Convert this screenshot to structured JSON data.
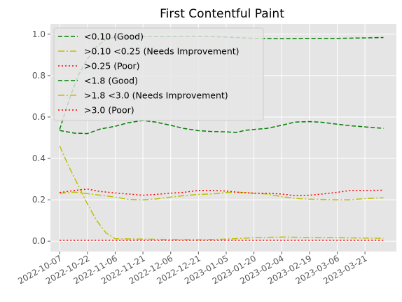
{
  "chart_data": {
    "type": "line",
    "title": "First Contentful Paint",
    "xlabel": "",
    "ylabel": "",
    "x_type": "date",
    "xlim": [
      "2022-10-02",
      "2023-04-07"
    ],
    "ylim": [
      -0.05,
      1.05
    ],
    "x_ticks": [
      "2022-10-07",
      "2022-10-22",
      "2022-11-06",
      "2022-11-21",
      "2022-12-06",
      "2022-12-21",
      "2023-01-05",
      "2023-01-20",
      "2023-02-04",
      "2023-02-19",
      "2023-03-06",
      "2023-03-21"
    ],
    "y_ticks": [
      0.0,
      0.2,
      0.4,
      0.6,
      0.8,
      1.0
    ],
    "y_tick_labels": [
      "0.0",
      "0.2",
      "0.4",
      "0.6",
      "0.8",
      "1.0"
    ],
    "grid": true,
    "legend_position": "top-left",
    "background": "#e5e5e5",
    "series": [
      {
        "name": "<0.10 (Good)",
        "color": "#008000",
        "style": "dashed",
        "points": [
          [
            "2022-10-07",
            0.54
          ],
          [
            "2022-10-12",
            0.68
          ],
          [
            "2022-10-17",
            0.8
          ],
          [
            "2022-10-22",
            0.88
          ],
          [
            "2022-10-27",
            0.94
          ],
          [
            "2022-11-01",
            0.975
          ],
          [
            "2022-11-06",
            0.985
          ],
          [
            "2022-11-21",
            0.988
          ],
          [
            "2022-12-06",
            0.988
          ],
          [
            "2022-12-21",
            0.99
          ],
          [
            "2023-01-05",
            0.986
          ],
          [
            "2023-01-20",
            0.98
          ],
          [
            "2023-02-04",
            0.978
          ],
          [
            "2023-02-19",
            0.98
          ],
          [
            "2023-03-06",
            0.98
          ],
          [
            "2023-03-21",
            0.982
          ],
          [
            "2023-03-31",
            0.984
          ]
        ]
      },
      {
        "name": ">0.10  <0.25 (Needs Improvement)",
        "color": "#bfbf00",
        "style": "dashdot",
        "points": [
          [
            "2022-10-07",
            0.46
          ],
          [
            "2022-10-12",
            0.36
          ],
          [
            "2022-10-17",
            0.27
          ],
          [
            "2022-10-22",
            0.18
          ],
          [
            "2022-10-27",
            0.1
          ],
          [
            "2022-11-01",
            0.04
          ],
          [
            "2022-11-06",
            0.012
          ],
          [
            "2022-11-21",
            0.01
          ],
          [
            "2022-12-06",
            0.008
          ],
          [
            "2022-12-21",
            0.007
          ],
          [
            "2023-01-05",
            0.01
          ],
          [
            "2023-01-20",
            0.017
          ],
          [
            "2023-02-04",
            0.02
          ],
          [
            "2023-02-19",
            0.018
          ],
          [
            "2023-03-06",
            0.017
          ],
          [
            "2023-03-21",
            0.015
          ],
          [
            "2023-03-31",
            0.014
          ]
        ]
      },
      {
        "name": ">0.25 (Poor)",
        "color": "#ff0000",
        "style": "dotted",
        "points": [
          [
            "2022-10-07",
            0.004
          ],
          [
            "2022-10-22",
            0.004
          ],
          [
            "2022-11-06",
            0.004
          ],
          [
            "2022-11-21",
            0.004
          ],
          [
            "2022-12-06",
            0.004
          ],
          [
            "2022-12-21",
            0.004
          ],
          [
            "2023-01-05",
            0.004
          ],
          [
            "2023-01-20",
            0.004
          ],
          [
            "2023-02-04",
            0.004
          ],
          [
            "2023-02-19",
            0.004
          ],
          [
            "2023-03-06",
            0.004
          ],
          [
            "2023-03-21",
            0.004
          ],
          [
            "2023-03-31",
            0.004
          ]
        ]
      },
      {
        "name": "<1.8 (Good)",
        "color": "#008000",
        "style": "dashed",
        "points": [
          [
            "2022-10-07",
            0.535
          ],
          [
            "2022-10-15",
            0.522
          ],
          [
            "2022-10-22",
            0.52
          ],
          [
            "2022-10-29",
            0.542
          ],
          [
            "2022-11-06",
            0.555
          ],
          [
            "2022-11-13",
            0.572
          ],
          [
            "2022-11-21",
            0.583
          ],
          [
            "2022-11-28",
            0.575
          ],
          [
            "2022-12-06",
            0.56
          ],
          [
            "2022-12-13",
            0.545
          ],
          [
            "2022-12-21",
            0.534
          ],
          [
            "2022-12-28",
            0.53
          ],
          [
            "2023-01-05",
            0.528
          ],
          [
            "2023-01-10",
            0.525
          ],
          [
            "2023-01-15",
            0.535
          ],
          [
            "2023-01-20",
            0.54
          ],
          [
            "2023-01-27",
            0.545
          ],
          [
            "2023-02-04",
            0.56
          ],
          [
            "2023-02-11",
            0.575
          ],
          [
            "2023-02-19",
            0.578
          ],
          [
            "2023-02-26",
            0.574
          ],
          [
            "2023-03-06",
            0.565
          ],
          [
            "2023-03-13",
            0.558
          ],
          [
            "2023-03-21",
            0.552
          ],
          [
            "2023-03-31",
            0.545
          ]
        ]
      },
      {
        "name": ">1.8  <3.0 (Needs Improvement)",
        "color": "#bfbf00",
        "style": "dashdot",
        "points": [
          [
            "2022-10-07",
            0.232
          ],
          [
            "2022-10-15",
            0.237
          ],
          [
            "2022-10-22",
            0.23
          ],
          [
            "2022-10-29",
            0.222
          ],
          [
            "2022-11-06",
            0.213
          ],
          [
            "2022-11-13",
            0.202
          ],
          [
            "2022-11-21",
            0.2
          ],
          [
            "2022-11-28",
            0.204
          ],
          [
            "2022-12-06",
            0.213
          ],
          [
            "2022-12-13",
            0.22
          ],
          [
            "2022-12-21",
            0.226
          ],
          [
            "2022-12-28",
            0.228
          ],
          [
            "2023-01-05",
            0.235
          ],
          [
            "2023-01-12",
            0.236
          ],
          [
            "2023-01-20",
            0.232
          ],
          [
            "2023-01-27",
            0.228
          ],
          [
            "2023-02-04",
            0.215
          ],
          [
            "2023-02-11",
            0.207
          ],
          [
            "2023-02-19",
            0.203
          ],
          [
            "2023-03-06",
            0.2
          ],
          [
            "2023-03-13",
            0.2
          ],
          [
            "2023-03-21",
            0.206
          ],
          [
            "2023-03-31",
            0.21
          ]
        ]
      },
      {
        "name": ">3.0 (Poor)",
        "color": "#ff0000",
        "style": "dotted",
        "points": [
          [
            "2022-10-07",
            0.235
          ],
          [
            "2022-10-15",
            0.245
          ],
          [
            "2022-10-22",
            0.252
          ],
          [
            "2022-10-29",
            0.24
          ],
          [
            "2022-11-06",
            0.233
          ],
          [
            "2022-11-13",
            0.228
          ],
          [
            "2022-11-21",
            0.222
          ],
          [
            "2022-11-28",
            0.226
          ],
          [
            "2022-12-06",
            0.232
          ],
          [
            "2022-12-13",
            0.236
          ],
          [
            "2022-12-21",
            0.245
          ],
          [
            "2022-12-28",
            0.245
          ],
          [
            "2023-01-05",
            0.242
          ],
          [
            "2023-01-12",
            0.236
          ],
          [
            "2023-01-20",
            0.232
          ],
          [
            "2023-01-27",
            0.232
          ],
          [
            "2023-02-04",
            0.228
          ],
          [
            "2023-02-11",
            0.22
          ],
          [
            "2023-02-19",
            0.222
          ],
          [
            "2023-02-26",
            0.228
          ],
          [
            "2023-03-06",
            0.236
          ],
          [
            "2023-03-13",
            0.245
          ],
          [
            "2023-03-21",
            0.245
          ],
          [
            "2023-03-31",
            0.246
          ]
        ]
      }
    ]
  }
}
